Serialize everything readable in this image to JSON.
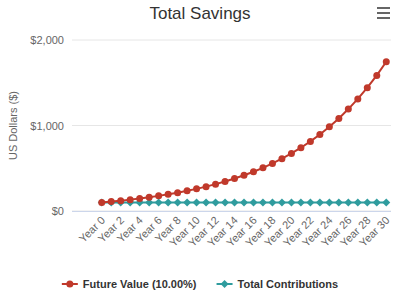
{
  "chart_data": {
    "type": "line",
    "title": "Total Savings",
    "y_label": "US Dollars ($)",
    "categories": [
      "Year 0",
      null,
      "Year 2",
      null,
      "Year 4",
      null,
      "Year 6",
      null,
      "Year 8",
      null,
      "Year 10",
      null,
      "Year 12",
      null,
      "Year 14",
      null,
      "Year 16",
      null,
      "Year 18",
      null,
      "Year 20",
      null,
      "Year 22",
      null,
      "Year 24",
      null,
      "Year 26",
      null,
      "Year 28",
      null,
      "Year 30"
    ],
    "series": [
      {
        "name": "Future Value (10.00%)",
        "color": "#c0392b",
        "marker": "circle",
        "values": [
          100,
          110,
          121,
          133,
          146,
          161,
          177,
          195,
          214,
          236,
          259,
          285,
          314,
          345,
          380,
          418,
          459,
          505,
          556,
          612,
          673,
          740,
          814,
          895,
          985,
          1083,
          1192,
          1311,
          1442,
          1586,
          1745
        ]
      },
      {
        "name": "Total Contributions",
        "color": "#2f9c9e",
        "marker": "diamond",
        "values": [
          100,
          100,
          100,
          100,
          100,
          100,
          100,
          100,
          100,
          100,
          100,
          100,
          100,
          100,
          100,
          100,
          100,
          100,
          100,
          100,
          100,
          100,
          100,
          100,
          100,
          100,
          100,
          100,
          100,
          100,
          100
        ]
      }
    ],
    "ylim": [
      0,
      2000
    ],
    "yticks": [
      {
        "value": 0,
        "label": "$0"
      },
      {
        "value": 1000,
        "label": "$1,000"
      },
      {
        "value": 2000,
        "label": "$2,000"
      }
    ],
    "grid": true,
    "legend": "bottom"
  }
}
